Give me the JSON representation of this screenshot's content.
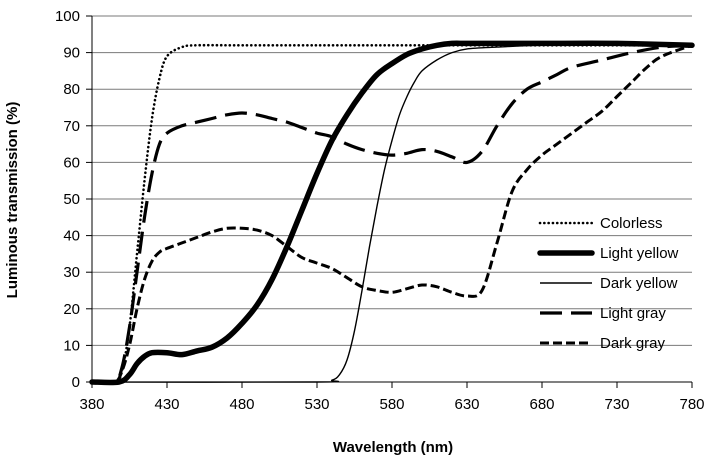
{
  "chart_data": {
    "type": "line",
    "title": "",
    "xlabel": "Wavelength  (nm)",
    "ylabel": "Luminous transmission  (%)",
    "xlim": [
      380,
      780
    ],
    "ylim": [
      0,
      100
    ],
    "xticks": [
      380,
      430,
      480,
      530,
      580,
      630,
      680,
      730,
      780
    ],
    "yticks": [
      0,
      10,
      20,
      30,
      40,
      50,
      60,
      70,
      80,
      90,
      100
    ],
    "grid": "horizontal",
    "legend_position": "right",
    "series": [
      {
        "name": "Colorless",
        "style": "dotted",
        "color": "#000000",
        "x": [
          380,
          395,
          400,
          405,
          410,
          415,
          420,
          425,
          430,
          440,
          450,
          480,
          530,
          580,
          630,
          680,
          730,
          760,
          780
        ],
        "y": [
          0,
          0,
          3,
          15,
          35,
          55,
          72,
          83,
          89,
          91.5,
          92,
          92,
          92,
          92,
          92,
          92,
          92,
          92,
          92
        ]
      },
      {
        "name": "Light yellow",
        "style": "thick",
        "color": "#000000",
        "x": [
          380,
          398,
          405,
          410,
          415,
          420,
          430,
          440,
          450,
          460,
          470,
          480,
          490,
          500,
          510,
          520,
          530,
          540,
          550,
          560,
          570,
          580,
          590,
          600,
          610,
          620,
          630,
          650,
          680,
          730,
          780
        ],
        "y": [
          0,
          0,
          2,
          5,
          7,
          8,
          8,
          7.5,
          8.5,
          9.5,
          12,
          16,
          21,
          28,
          37,
          47,
          57,
          66,
          73,
          79,
          84,
          87,
          89.5,
          91,
          92,
          92.5,
          92.5,
          92.5,
          92.5,
          92.5,
          92
        ]
      },
      {
        "name": "Dark yellow",
        "style": "thin",
        "color": "#000000",
        "x": [
          380,
          530,
          540,
          545,
          550,
          555,
          560,
          565,
          570,
          575,
          580,
          585,
          590,
          595,
          600,
          610,
          620,
          630,
          650,
          680,
          730,
          780
        ],
        "y": [
          0,
          0,
          0.5,
          2,
          6,
          14,
          25,
          37,
          48,
          58,
          66,
          73,
          78,
          82,
          85,
          88,
          90,
          91,
          91.5,
          92,
          92,
          92
        ]
      },
      {
        "name": "Light gray",
        "style": "long-dash",
        "color": "#000000",
        "x": [
          380,
          395,
          400,
          405,
          410,
          415,
          420,
          425,
          430,
          440,
          450,
          460,
          470,
          480,
          490,
          500,
          510,
          520,
          530,
          540,
          550,
          560,
          570,
          580,
          590,
          600,
          610,
          620,
          630,
          640,
          650,
          660,
          670,
          680,
          690,
          700,
          720,
          740,
          760,
          780
        ],
        "y": [
          0,
          0,
          4,
          15,
          30,
          45,
          57,
          65,
          68,
          70,
          71,
          72,
          73,
          73.5,
          73,
          72,
          71,
          69.5,
          68,
          67,
          65,
          63.5,
          62.5,
          62,
          62.5,
          63.5,
          63,
          61.5,
          60,
          63,
          70,
          76,
          80,
          82,
          84,
          86,
          88,
          90,
          91.5,
          92
        ]
      },
      {
        "name": "Dark gray",
        "style": "short-dash",
        "color": "#000000",
        "x": [
          380,
          395,
          400,
          405,
          410,
          415,
          420,
          425,
          430,
          440,
          450,
          460,
          470,
          480,
          490,
          500,
          510,
          520,
          530,
          540,
          550,
          560,
          570,
          580,
          590,
          600,
          610,
          620,
          630,
          640,
          650,
          660,
          670,
          680,
          690,
          700,
          710,
          720,
          730,
          740,
          750,
          760,
          780
        ],
        "y": [
          0,
          0,
          3,
          10,
          20,
          28,
          33,
          35.5,
          36.5,
          38,
          39.5,
          41,
          42,
          42,
          41.5,
          40,
          37,
          34,
          32.5,
          31,
          28.5,
          26,
          25,
          24.5,
          25.5,
          26.5,
          26,
          24.5,
          23.5,
          25,
          38,
          52,
          58,
          62,
          65,
          68,
          71,
          74,
          78,
          82,
          86,
          89,
          92
        ]
      }
    ]
  }
}
